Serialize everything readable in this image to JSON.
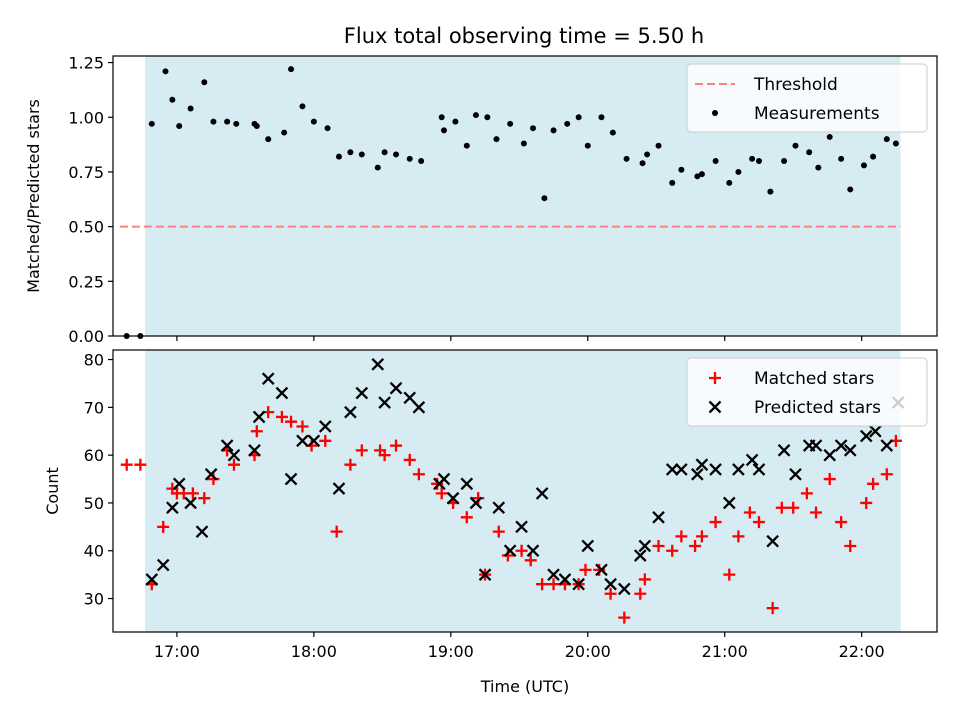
{
  "figure": {
    "title": "Flux total observing time = 5.50 h"
  },
  "colors": {
    "span": "#add8e6",
    "threshold": "#ff7f7f",
    "measurement": "#000000",
    "matched": "#ff0000",
    "predicted": "#000000",
    "axis": "#000000"
  },
  "chart_data": [
    {
      "type": "scatter",
      "panel": "top",
      "ylabel": "Matched/Predicted stars",
      "xlabel": "",
      "ylim": [
        0,
        1.28
      ],
      "yticks": [
        0,
        0.25,
        0.5,
        0.75,
        1.0,
        1.25
      ],
      "ytick_labels": [
        "0.00",
        "0.25",
        "0.50",
        "0.75",
        "1.00",
        "1.25"
      ],
      "xlim": [
        "16:32",
        "22:33"
      ],
      "xticks": [
        "17:00",
        "18:00",
        "19:00",
        "20:00",
        "21:00",
        "22:00"
      ],
      "xtick_labels": [],
      "grid": false,
      "legend": {
        "position": "upper right",
        "entries": [
          "Threshold",
          "Measurements"
        ]
      },
      "shaded_span": {
        "x": [
          "16:46",
          "22:17"
        ]
      },
      "threshold": {
        "name": "Threshold",
        "y": 0.5,
        "x": [
          "16:35",
          "22:17"
        ],
        "style": "dashed"
      },
      "series": [
        {
          "name": "Measurements",
          "marker": "dot",
          "points": [
            [
              "16:38",
              0.0
            ],
            [
              "16:44",
              0.0
            ],
            [
              "16:49",
              0.97
            ],
            [
              "16:55",
              1.21
            ],
            [
              "16:58",
              1.08
            ],
            [
              "17:01",
              0.96
            ],
            [
              "17:06",
              1.04
            ],
            [
              "17:12",
              1.16
            ],
            [
              "17:16",
              0.98
            ],
            [
              "17:22",
              0.98
            ],
            [
              "17:26",
              0.97
            ],
            [
              "17:34",
              0.97
            ],
            [
              "17:35",
              0.96
            ],
            [
              "17:40",
              0.9
            ],
            [
              "17:47",
              0.93
            ],
            [
              "17:50",
              1.22
            ],
            [
              "17:55",
              1.05
            ],
            [
              "18:00",
              0.98
            ],
            [
              "18:06",
              0.95
            ],
            [
              "18:11",
              0.82
            ],
            [
              "18:16",
              0.84
            ],
            [
              "18:21",
              0.83
            ],
            [
              "18:28",
              0.77
            ],
            [
              "18:31",
              0.84
            ],
            [
              "18:36",
              0.83
            ],
            [
              "18:42",
              0.81
            ],
            [
              "18:47",
              0.8
            ],
            [
              "18:56",
              1.0
            ],
            [
              "18:57",
              0.94
            ],
            [
              "19:02",
              0.98
            ],
            [
              "19:07",
              0.87
            ],
            [
              "19:11",
              1.01
            ],
            [
              "19:16",
              1.0
            ],
            [
              "19:20",
              0.9
            ],
            [
              "19:26",
              0.97
            ],
            [
              "19:32",
              0.88
            ],
            [
              "19:36",
              0.95
            ],
            [
              "19:41",
              0.63
            ],
            [
              "19:45",
              0.94
            ],
            [
              "19:51",
              0.97
            ],
            [
              "19:56",
              1.0
            ],
            [
              "20:00",
              0.87
            ],
            [
              "20:06",
              1.0
            ],
            [
              "20:11",
              0.93
            ],
            [
              "20:17",
              0.81
            ],
            [
              "20:24",
              0.79
            ],
            [
              "20:26",
              0.83
            ],
            [
              "20:31",
              0.87
            ],
            [
              "20:37",
              0.7
            ],
            [
              "20:41",
              0.76
            ],
            [
              "20:48",
              0.73
            ],
            [
              "20:50",
              0.74
            ],
            [
              "20:56",
              0.8
            ],
            [
              "21:02",
              0.7
            ],
            [
              "21:06",
              0.75
            ],
            [
              "21:12",
              0.81
            ],
            [
              "21:15",
              0.8
            ],
            [
              "21:20",
              0.66
            ],
            [
              "21:26",
              0.8
            ],
            [
              "21:31",
              0.87
            ],
            [
              "21:37",
              0.84
            ],
            [
              "21:41",
              0.77
            ],
            [
              "21:46",
              0.91
            ],
            [
              "21:51",
              0.81
            ],
            [
              "21:55",
              0.67
            ],
            [
              "22:01",
              0.78
            ],
            [
              "22:05",
              0.82
            ],
            [
              "22:11",
              0.9
            ],
            [
              "22:15",
              0.88
            ]
          ]
        }
      ]
    },
    {
      "type": "scatter",
      "panel": "bottom",
      "ylabel": "Count",
      "xlabel": "Time (UTC)",
      "ylim": [
        23,
        82
      ],
      "yticks": [
        30,
        40,
        50,
        60,
        70,
        80
      ],
      "ytick_labels": [
        "30",
        "40",
        "50",
        "60",
        "70",
        "80"
      ],
      "xlim": [
        "16:32",
        "22:33"
      ],
      "xticks": [
        "17:00",
        "18:00",
        "19:00",
        "20:00",
        "21:00",
        "22:00"
      ],
      "xtick_labels": [
        "17:00",
        "18:00",
        "19:00",
        "20:00",
        "21:00",
        "22:00"
      ],
      "grid": false,
      "legend": {
        "position": "upper right",
        "entries": [
          "Matched stars",
          "Predicted stars"
        ]
      },
      "shaded_span": {
        "x": [
          "16:46",
          "22:17"
        ]
      },
      "series": [
        {
          "name": "Matched stars",
          "marker": "plus",
          "points": [
            [
              "16:38",
              58
            ],
            [
              "16:44",
              58
            ],
            [
              "16:49",
              33
            ],
            [
              "16:54",
              45
            ],
            [
              "16:58",
              53
            ],
            [
              "17:00",
              52
            ],
            [
              "17:03",
              52
            ],
            [
              "17:07",
              52
            ],
            [
              "17:12",
              51
            ],
            [
              "17:16",
              55
            ],
            [
              "17:22",
              61
            ],
            [
              "17:25",
              58
            ],
            [
              "17:34",
              60
            ],
            [
              "17:35",
              65
            ],
            [
              "17:40",
              69
            ],
            [
              "17:46",
              68
            ],
            [
              "17:50",
              67
            ],
            [
              "17:55",
              66
            ],
            [
              "17:59",
              62
            ],
            [
              "18:05",
              63
            ],
            [
              "18:10",
              44
            ],
            [
              "18:16",
              58
            ],
            [
              "18:21",
              61
            ],
            [
              "18:29",
              61
            ],
            [
              "18:31",
              60
            ],
            [
              "18:36",
              62
            ],
            [
              "18:42",
              59
            ],
            [
              "18:46",
              56
            ],
            [
              "18:54",
              54
            ],
            [
              "18:56",
              52
            ],
            [
              "19:01",
              50
            ],
            [
              "19:07",
              47
            ],
            [
              "19:12",
              51
            ],
            [
              "19:15",
              35
            ],
            [
              "19:21",
              44
            ],
            [
              "19:25",
              39
            ],
            [
              "19:31",
              40
            ],
            [
              "19:35",
              38
            ],
            [
              "19:40",
              33
            ],
            [
              "19:45",
              33
            ],
            [
              "19:50",
              33
            ],
            [
              "19:56",
              33
            ],
            [
              "19:59",
              36
            ],
            [
              "20:05",
              36
            ],
            [
              "20:10",
              31
            ],
            [
              "20:16",
              26
            ],
            [
              "20:23",
              31
            ],
            [
              "20:25",
              34
            ],
            [
              "20:31",
              41
            ],
            [
              "20:37",
              40
            ],
            [
              "20:41",
              43
            ],
            [
              "20:47",
              41
            ],
            [
              "20:50",
              43
            ],
            [
              "20:56",
              46
            ],
            [
              "21:02",
              35
            ],
            [
              "21:06",
              43
            ],
            [
              "21:11",
              48
            ],
            [
              "21:15",
              46
            ],
            [
              "21:21",
              28
            ],
            [
              "21:25",
              49
            ],
            [
              "21:30",
              49
            ],
            [
              "21:36",
              52
            ],
            [
              "21:40",
              48
            ],
            [
              "21:46",
              55
            ],
            [
              "21:51",
              46
            ],
            [
              "21:55",
              41
            ],
            [
              "22:02",
              50
            ],
            [
              "22:05",
              54
            ],
            [
              "22:11",
              56
            ],
            [
              "22:15",
              63
            ]
          ]
        },
        {
          "name": "Predicted stars",
          "marker": "x",
          "points": [
            [
              "16:49",
              34
            ],
            [
              "16:54",
              37
            ],
            [
              "16:58",
              49
            ],
            [
              "17:01",
              54
            ],
            [
              "17:06",
              50
            ],
            [
              "17:11",
              44
            ],
            [
              "17:15",
              56
            ],
            [
              "17:22",
              62
            ],
            [
              "17:25",
              60
            ],
            [
              "17:34",
              61
            ],
            [
              "17:36",
              68
            ],
            [
              "17:40",
              76
            ],
            [
              "17:46",
              73
            ],
            [
              "17:50",
              55
            ],
            [
              "17:55",
              63
            ],
            [
              "18:00",
              63
            ],
            [
              "18:05",
              66
            ],
            [
              "18:11",
              53
            ],
            [
              "18:16",
              69
            ],
            [
              "18:21",
              73
            ],
            [
              "18:28",
              79
            ],
            [
              "18:31",
              71
            ],
            [
              "18:36",
              74
            ],
            [
              "18:42",
              72
            ],
            [
              "18:46",
              70
            ],
            [
              "18:55",
              54
            ],
            [
              "18:57",
              55
            ],
            [
              "19:01",
              51
            ],
            [
              "19:07",
              54
            ],
            [
              "19:11",
              50
            ],
            [
              "19:15",
              35
            ],
            [
              "19:21",
              49
            ],
            [
              "19:26",
              40
            ],
            [
              "19:31",
              45
            ],
            [
              "19:36",
              40
            ],
            [
              "19:40",
              52
            ],
            [
              "19:45",
              35
            ],
            [
              "19:50",
              34
            ],
            [
              "19:56",
              33
            ],
            [
              "20:00",
              41
            ],
            [
              "20:06",
              36
            ],
            [
              "20:10",
              33
            ],
            [
              "20:16",
              32
            ],
            [
              "20:23",
              39
            ],
            [
              "20:25",
              41
            ],
            [
              "20:31",
              47
            ],
            [
              "20:37",
              57
            ],
            [
              "20:41",
              57
            ],
            [
              "20:48",
              56
            ],
            [
              "20:50",
              58
            ],
            [
              "20:56",
              57
            ],
            [
              "21:02",
              50
            ],
            [
              "21:06",
              57
            ],
            [
              "21:12",
              59
            ],
            [
              "21:15",
              57
            ],
            [
              "21:21",
              42
            ],
            [
              "21:26",
              61
            ],
            [
              "21:31",
              56
            ],
            [
              "21:37",
              62
            ],
            [
              "21:40",
              62
            ],
            [
              "21:46",
              60
            ],
            [
              "21:51",
              62
            ],
            [
              "21:55",
              61
            ],
            [
              "22:02",
              64
            ],
            [
              "22:06",
              65
            ],
            [
              "22:11",
              62
            ],
            [
              "22:16",
              71
            ]
          ]
        }
      ]
    }
  ]
}
